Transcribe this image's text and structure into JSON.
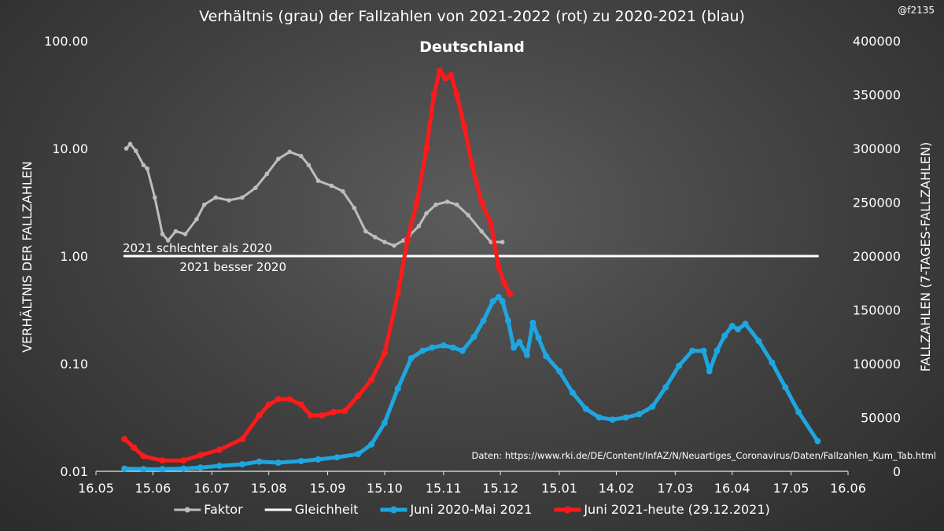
{
  "chart_data": {
    "type": "line",
    "title": "Verhältnis (grau) der Fallzahlen von 2021-2022 (rot) zu 2020-2021 (blau)",
    "subtitle": "Deutschland",
    "credit": "@f2135",
    "xlabel": "",
    "x_tick_labels": [
      "16.05",
      "15.06",
      "16.07",
      "15.08",
      "15.09",
      "15.10",
      "15.11",
      "15.12",
      "15.01",
      "14.02",
      "17.03",
      "16.04",
      "17.05",
      "16.06"
    ],
    "x_ticks": [
      "2020-05-16",
      "2020-06-15",
      "2020-07-16",
      "2020-08-15",
      "2020-09-15",
      "2020-10-15",
      "2020-11-15",
      "2020-12-15",
      "2021-01-15",
      "2021-02-14",
      "2021-03-17",
      "2021-04-16",
      "2021-05-17",
      "2021-06-16"
    ],
    "y_left": {
      "label": "VERHÄLTNIS DER FALLZAHLEN",
      "scale": "log",
      "range": [
        0.01,
        100
      ],
      "tick_labels": [
        "100.00",
        "10.00",
        "1.00",
        "0.10",
        "0.01"
      ]
    },
    "y_right": {
      "label": "FALLZAHLEN (7-TAGES-FALLZAHLEN)",
      "scale": "linear",
      "range": [
        0,
        400000
      ],
      "tick_labels": [
        "400000",
        "350000",
        "300000",
        "250000",
        "200000",
        "150000",
        "100000",
        "50000",
        "0"
      ]
    },
    "annotations": {
      "above_line": "2021 schlechter als 2020",
      "below_line": "2021 besser 2020",
      "source": "Daten: https://www.rki.de/DE/Content/InfAZ/N/Neuartiges_Coronavirus/Daten/Fallzahlen_Kum_Tab.html"
    },
    "grid": false,
    "legend_position": "bottom",
    "series": [
      {
        "name": "Faktor",
        "axis": "left",
        "color": "#bdbdbd",
        "x": [
          "2020-06-01",
          "2020-06-03",
          "2020-06-06",
          "2020-06-10",
          "2020-06-12",
          "2020-06-16",
          "2020-06-20",
          "2020-06-23",
          "2020-06-27",
          "2020-07-02",
          "2020-07-08",
          "2020-07-12",
          "2020-07-18",
          "2020-07-25",
          "2020-08-01",
          "2020-08-08",
          "2020-08-14",
          "2020-08-20",
          "2020-08-26",
          "2020-09-01",
          "2020-09-05",
          "2020-09-10",
          "2020-09-17",
          "2020-09-23",
          "2020-09-29",
          "2020-10-05",
          "2020-10-10",
          "2020-10-15",
          "2020-10-20",
          "2020-10-25",
          "2020-10-28",
          "2020-11-02",
          "2020-11-06",
          "2020-11-11",
          "2020-11-17",
          "2020-11-22",
          "2020-11-28",
          "2020-12-05",
          "2020-12-10",
          "2020-12-16"
        ],
        "y": [
          10,
          11,
          9.5,
          7,
          6.5,
          3.5,
          1.6,
          1.4,
          1.7,
          1.6,
          2.2,
          3.0,
          3.5,
          3.3,
          3.5,
          4.3,
          5.8,
          8.0,
          9.3,
          8.5,
          7.0,
          5.0,
          4.5,
          4.0,
          2.8,
          1.7,
          1.5,
          1.35,
          1.25,
          1.4,
          1.55,
          1.9,
          2.5,
          3.0,
          3.2,
          3.0,
          2.4,
          1.7,
          1.35,
          1.35
        ]
      },
      {
        "name": "Gleichheit",
        "axis": "left",
        "color": "#ffffff",
        "x": [
          "2020-05-31",
          "2021-05-31"
        ],
        "y": [
          1,
          1
        ]
      },
      {
        "name": "Juni 2020-Mai 2021",
        "axis": "right",
        "color": "#1ea6e0",
        "x": [
          "2020-05-31",
          "2020-06-10",
          "2020-06-20",
          "2020-07-01",
          "2020-07-10",
          "2020-07-20",
          "2020-08-01",
          "2020-08-10",
          "2020-08-20",
          "2020-09-01",
          "2020-09-10",
          "2020-09-20",
          "2020-10-01",
          "2020-10-08",
          "2020-10-15",
          "2020-10-22",
          "2020-10-29",
          "2020-11-04",
          "2020-11-09",
          "2020-11-15",
          "2020-11-20",
          "2020-11-25",
          "2020-12-01",
          "2020-12-06",
          "2020-12-11",
          "2020-12-14",
          "2020-12-16",
          "2020-12-19",
          "2020-12-22",
          "2020-12-25",
          "2020-12-29",
          "2021-01-01",
          "2021-01-04",
          "2021-01-08",
          "2021-01-15",
          "2021-01-22",
          "2021-01-29",
          "2021-02-05",
          "2021-02-12",
          "2021-02-19",
          "2021-02-26",
          "2021-03-05",
          "2021-03-12",
          "2021-03-19",
          "2021-03-26",
          "2021-04-01",
          "2021-04-04",
          "2021-04-08",
          "2021-04-12",
          "2021-04-16",
          "2021-04-19",
          "2021-04-23",
          "2021-04-30",
          "2021-05-07",
          "2021-05-14",
          "2021-05-21",
          "2021-05-31"
        ],
        "y": [
          2500,
          2000,
          2000,
          2500,
          3500,
          5000,
          6500,
          9000,
          8000,
          9500,
          11000,
          13000,
          16000,
          25000,
          45000,
          77000,
          105000,
          112000,
          115000,
          117000,
          115000,
          112000,
          125000,
          140000,
          158000,
          162000,
          158000,
          140000,
          115000,
          120000,
          108000,
          138000,
          124000,
          107000,
          93000,
          73000,
          58000,
          50000,
          48000,
          50000,
          53000,
          60000,
          78000,
          98000,
          112000,
          112000,
          93000,
          112000,
          126000,
          135000,
          132000,
          137000,
          121000,
          101000,
          78000,
          55000,
          28000
        ]
      },
      {
        "name": "Juni 2021-heute (29.12.2021)",
        "axis": "right",
        "color": "#ff1a1a",
        "x": [
          "2020-05-31",
          "2020-06-05",
          "2020-06-10",
          "2020-06-20",
          "2020-07-01",
          "2020-07-10",
          "2020-07-20",
          "2020-08-01",
          "2020-08-10",
          "2020-08-15",
          "2020-08-20",
          "2020-08-26",
          "2020-09-01",
          "2020-09-06",
          "2020-09-12",
          "2020-09-18",
          "2020-09-24",
          "2020-10-01",
          "2020-10-08",
          "2020-10-15",
          "2020-10-22",
          "2020-10-27",
          "2020-11-01",
          "2020-11-06",
          "2020-11-10",
          "2020-11-13",
          "2020-11-16",
          "2020-11-19",
          "2020-11-22",
          "2020-11-26",
          "2020-11-30",
          "2020-12-05",
          "2020-12-10",
          "2020-12-14",
          "2020-12-17",
          "2020-12-20"
        ],
        "y": [
          30000,
          22000,
          14000,
          10000,
          10000,
          15000,
          20000,
          30000,
          52000,
          62000,
          67000,
          67000,
          62000,
          52000,
          52000,
          55000,
          56000,
          70000,
          85000,
          110000,
          165000,
          215000,
          250000,
          300000,
          350000,
          372000,
          365000,
          368000,
          350000,
          320000,
          285000,
          250000,
          230000,
          190000,
          175000,
          165000
        ]
      }
    ]
  }
}
